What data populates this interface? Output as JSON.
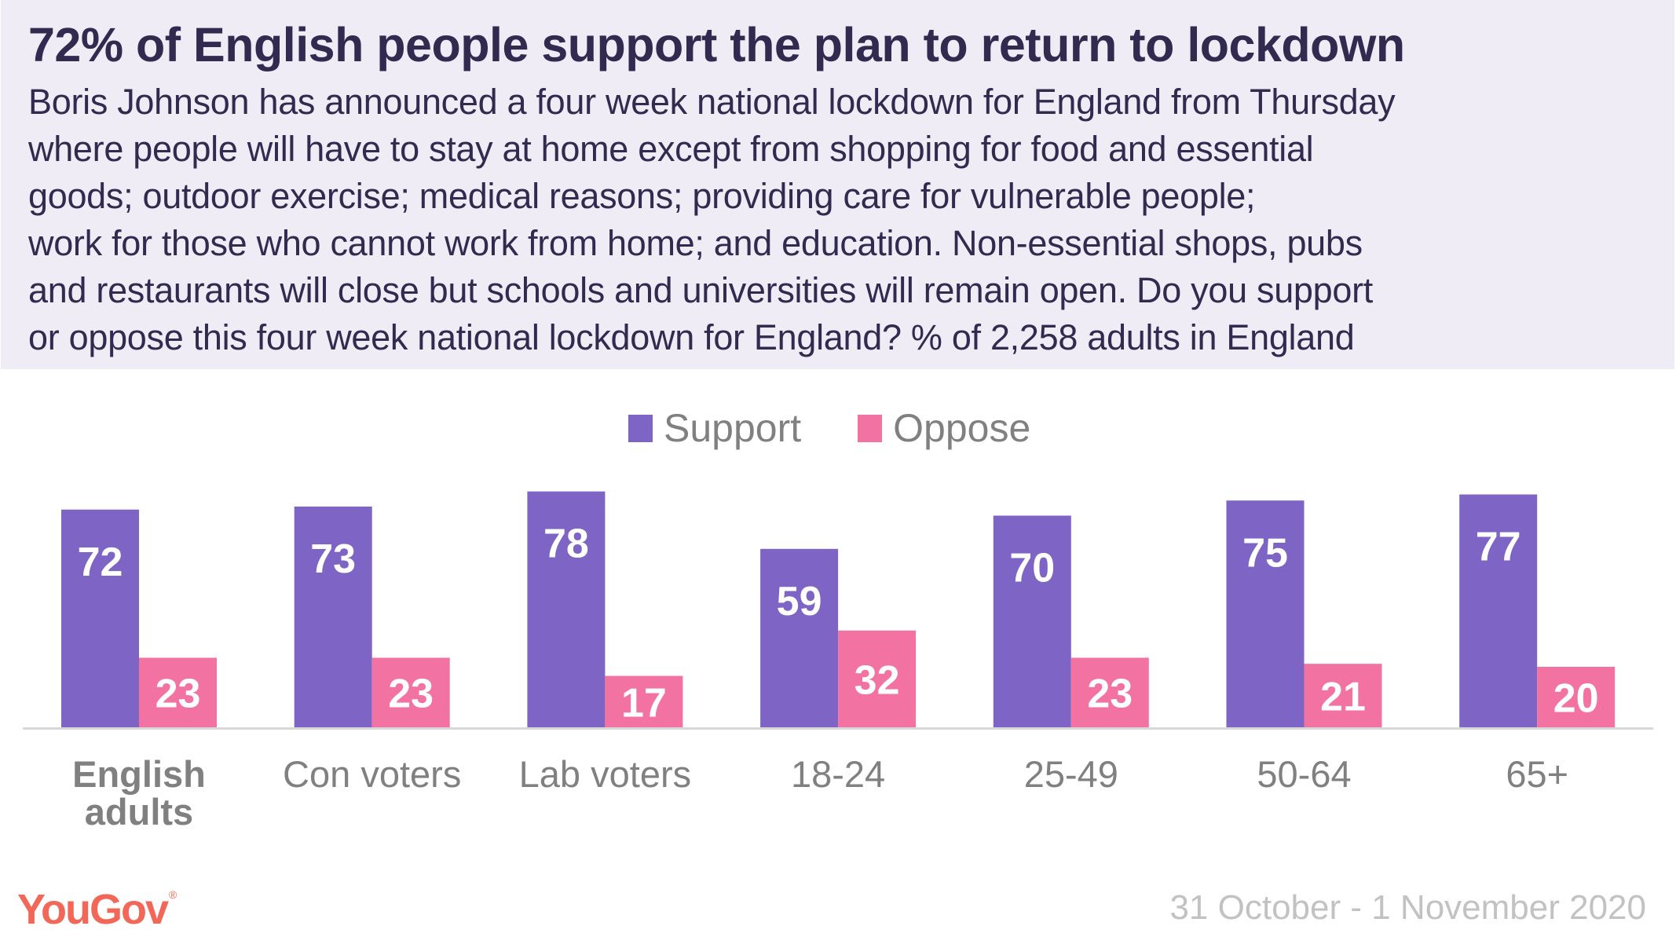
{
  "header": {
    "title": "72% of English people support the plan to return to lockdown",
    "subtitle_lines": [
      "Boris Johnson has announced a four week national lockdown for England from Thursday",
      "where people will have to stay at home except from shopping for food and essential",
      "goods; outdoor exercise; medical reasons; providing care for vulnerable people;",
      "work for those who cannot work from home; and education. Non-essential shops, pubs",
      "and restaurants will close but schools and universities will remain open. Do you support",
      "or oppose this four week national lockdown for England? % of 2,258 adults in England"
    ]
  },
  "colors": {
    "support": "#7E64C4",
    "oppose": "#F273A2",
    "header_bg": "#EFECF5",
    "brand": "#F26858"
  },
  "chart_data": {
    "type": "bar",
    "title": "72% of English people support the plan to return to lockdown",
    "xlabel": "",
    "ylabel": "",
    "ylim": [
      0,
      100
    ],
    "grid": false,
    "legend_position": "top-center",
    "categories": [
      "English adults",
      "Con voters",
      "Lab voters",
      "18-24",
      "25-49",
      "50-64",
      "65+"
    ],
    "bold_categories": [
      "English adults"
    ],
    "series": [
      {
        "name": "Support",
        "color": "#7E64C4",
        "values": [
          72,
          73,
          78,
          59,
          70,
          75,
          77
        ]
      },
      {
        "name": "Oppose",
        "color": "#F273A2",
        "values": [
          23,
          23,
          17,
          32,
          23,
          21,
          20
        ]
      }
    ]
  },
  "footer": {
    "logo_text": "YouGov",
    "logo_mark": "®",
    "date": "31 October - 1 November 2020"
  }
}
